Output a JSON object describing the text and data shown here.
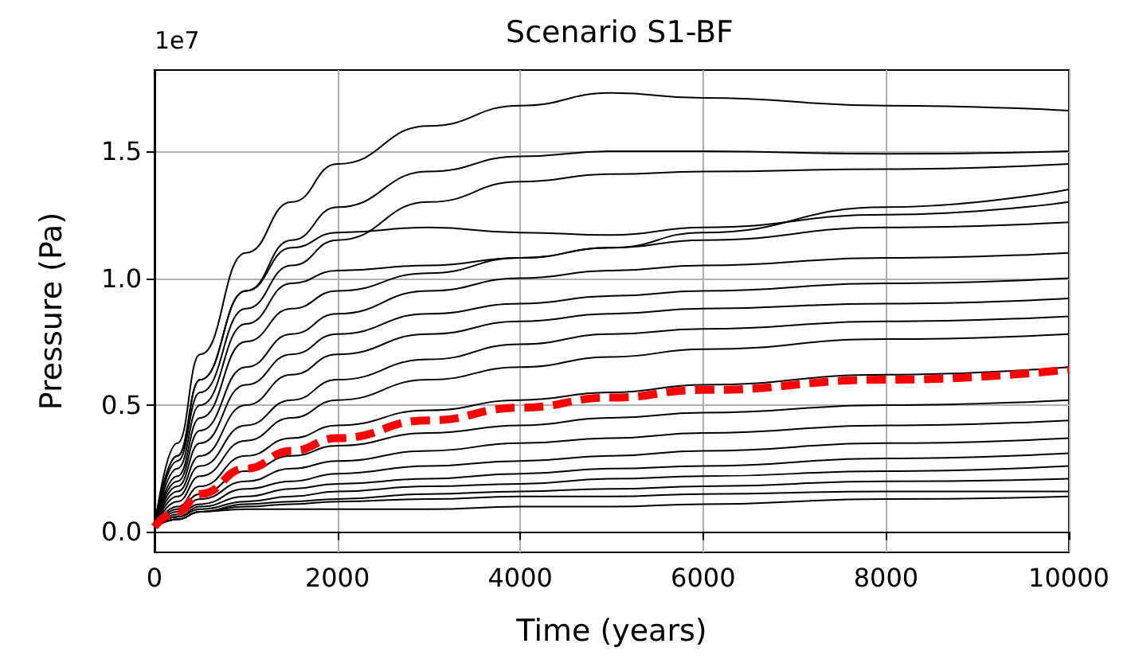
{
  "chart_data": {
    "type": "line",
    "title": "Scenario S1-BF",
    "xlabel": "Time (years)",
    "ylabel": "Pressure (Pa)",
    "annotations": [
      "1e7"
    ],
    "x": [
      0,
      250,
      500,
      1000,
      1500,
      2000,
      3000,
      4000,
      5000,
      6000,
      8000,
      10000
    ],
    "xlim": [
      0,
      10000
    ],
    "xticks": [
      0,
      2000,
      4000,
      6000,
      8000,
      10000
    ],
    "ylim": [
      -0.08,
      1.82
    ],
    "yticks": [
      {
        "value": 0,
        "label": "0.0"
      },
      {
        "value": 0.5,
        "label": "0.5"
      },
      {
        "value": 1,
        "label": "1.0"
      },
      {
        "value": 1.5,
        "label": "1.5"
      }
    ],
    "grid": true,
    "series": [
      {
        "color": "#000000",
        "line_style": "solid",
        "values": [
          0.02,
          0.35,
          0.7,
          1.1,
          1.3,
          1.45,
          1.6,
          1.68,
          1.73,
          1.71,
          1.68,
          1.66
        ]
      },
      {
        "color": "#000000",
        "line_style": "solid",
        "values": [
          0.02,
          0.3,
          0.6,
          0.95,
          1.15,
          1.28,
          1.42,
          1.48,
          1.5,
          1.5,
          1.49,
          1.5
        ]
      },
      {
        "color": "#000000",
        "line_style": "solid",
        "values": [
          0.02,
          0.3,
          0.6,
          0.95,
          1.12,
          1.18,
          1.2,
          1.18,
          1.17,
          1.2,
          1.25,
          1.3
        ]
      },
      {
        "color": "#000000",
        "line_style": "solid",
        "values": [
          0.02,
          0.28,
          0.55,
          0.88,
          1.05,
          1.15,
          1.3,
          1.38,
          1.41,
          1.42,
          1.43,
          1.45
        ]
      },
      {
        "color": "#000000",
        "line_style": "solid",
        "values": [
          0.02,
          0.25,
          0.5,
          0.82,
          0.98,
          1.03,
          1.05,
          1.08,
          1.12,
          1.18,
          1.28,
          1.35
        ]
      },
      {
        "color": "#000000",
        "line_style": "solid",
        "values": [
          0.02,
          0.22,
          0.45,
          0.75,
          0.88,
          0.95,
          1.02,
          1.08,
          1.12,
          1.15,
          1.2,
          1.22
        ]
      },
      {
        "color": "#000000",
        "line_style": "solid",
        "values": [
          0.02,
          0.2,
          0.4,
          0.65,
          0.78,
          0.86,
          0.95,
          1.0,
          1.03,
          1.05,
          1.08,
          1.1
        ]
      },
      {
        "color": "#000000",
        "line_style": "solid",
        "values": [
          0.02,
          0.18,
          0.35,
          0.58,
          0.7,
          0.78,
          0.86,
          0.9,
          0.93,
          0.95,
          0.98,
          1.0
        ]
      },
      {
        "color": "#000000",
        "line_style": "solid",
        "values": [
          0.02,
          0.16,
          0.3,
          0.5,
          0.62,
          0.7,
          0.78,
          0.83,
          0.86,
          0.88,
          0.9,
          0.92
        ]
      },
      {
        "color": "#000000",
        "line_style": "solid",
        "values": [
          0.02,
          0.14,
          0.26,
          0.42,
          0.52,
          0.6,
          0.68,
          0.74,
          0.78,
          0.8,
          0.83,
          0.85
        ]
      },
      {
        "color": "#000000",
        "line_style": "solid",
        "values": [
          0.02,
          0.12,
          0.22,
          0.36,
          0.45,
          0.52,
          0.6,
          0.65,
          0.69,
          0.72,
          0.76,
          0.78
        ]
      },
      {
        "color": "#000000",
        "line_style": "solid",
        "values": [
          0.02,
          0.1,
          0.18,
          0.3,
          0.37,
          0.42,
          0.48,
          0.52,
          0.55,
          0.58,
          0.62,
          0.65
        ]
      },
      {
        "color": "#000000",
        "line_style": "solid",
        "values": [
          0.02,
          0.09,
          0.15,
          0.24,
          0.3,
          0.34,
          0.39,
          0.42,
          0.45,
          0.47,
          0.5,
          0.52
        ]
      },
      {
        "color": "#000000",
        "line_style": "solid",
        "values": [
          0.02,
          0.08,
          0.13,
          0.2,
          0.25,
          0.28,
          0.32,
          0.35,
          0.37,
          0.39,
          0.42,
          0.44
        ]
      },
      {
        "color": "#000000",
        "line_style": "solid",
        "values": [
          0.02,
          0.07,
          0.11,
          0.17,
          0.2,
          0.23,
          0.26,
          0.28,
          0.3,
          0.32,
          0.35,
          0.37
        ]
      },
      {
        "color": "#000000",
        "line_style": "solid",
        "values": [
          0.02,
          0.06,
          0.1,
          0.14,
          0.17,
          0.19,
          0.21,
          0.23,
          0.25,
          0.26,
          0.29,
          0.31
        ]
      },
      {
        "color": "#000000",
        "line_style": "solid",
        "values": [
          0.02,
          0.06,
          0.09,
          0.12,
          0.14,
          0.16,
          0.18,
          0.19,
          0.21,
          0.22,
          0.24,
          0.26
        ]
      },
      {
        "color": "#000000",
        "line_style": "solid",
        "values": [
          0.02,
          0.05,
          0.08,
          0.11,
          0.12,
          0.13,
          0.15,
          0.16,
          0.17,
          0.18,
          0.2,
          0.21
        ]
      },
      {
        "color": "#000000",
        "line_style": "solid",
        "values": [
          0.02,
          0.05,
          0.08,
          0.1,
          0.11,
          0.12,
          0.13,
          0.14,
          0.14,
          0.15,
          0.16,
          0.16
        ]
      },
      {
        "color": "#000000",
        "line_style": "solid",
        "values": [
          0.02,
          0.05,
          0.08,
          0.09,
          0.09,
          0.09,
          0.09,
          0.1,
          0.1,
          0.11,
          0.13,
          0.14
        ]
      },
      {
        "color": "#ff0000",
        "line_style": "dashed",
        "values": [
          0.02,
          0.08,
          0.15,
          0.25,
          0.32,
          0.37,
          0.44,
          0.49,
          0.53,
          0.56,
          0.6,
          0.64
        ]
      }
    ]
  }
}
